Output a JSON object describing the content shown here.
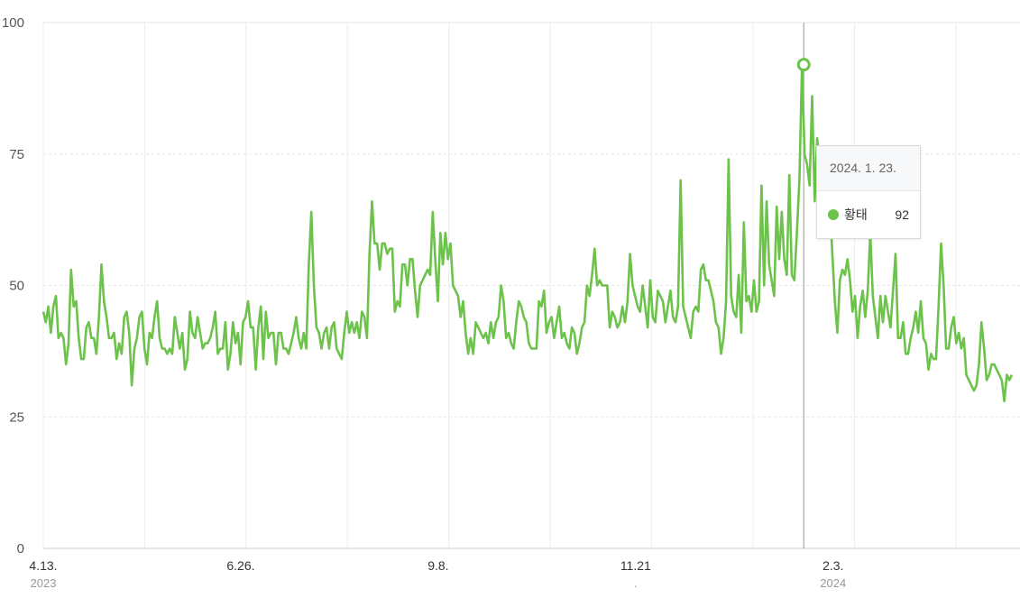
{
  "chart_data": {
    "type": "line",
    "title": "",
    "xlabel": "",
    "ylabel": "",
    "ylim": [
      0,
      100
    ],
    "yticks": [
      "0",
      "25",
      "50",
      "75",
      "100"
    ],
    "grid": true,
    "legend": "none",
    "line_color": "#6cc24a",
    "x_start": "2023-04-13",
    "x_end": "2024-04-10",
    "x_tick_labels": [
      {
        "label": "4.13.",
        "year": "2023",
        "date": "2023-04-13"
      },
      {
        "label": "6.26.",
        "year": "",
        "date": "2023-06-26"
      },
      {
        "label": "9.8.",
        "year": "",
        "date": "2023-09-08"
      },
      {
        "label": "11.21",
        "year": ".",
        "date": "2023-11-21"
      },
      {
        "label": "2.3.",
        "year": "2024",
        "date": "2024-02-03"
      }
    ],
    "series": [
      {
        "name": "황태",
        "values": [
          45,
          43,
          46,
          41,
          46,
          48,
          40,
          41,
          40,
          35,
          39,
          53,
          46,
          47,
          40,
          36,
          36,
          42,
          43,
          40,
          40,
          37,
          44,
          54,
          47,
          44,
          40,
          40,
          41,
          36,
          39,
          37,
          44,
          45,
          41,
          31,
          38,
          40,
          44,
          45,
          38,
          35,
          41,
          40,
          44,
          47,
          40,
          38,
          38,
          37,
          38,
          37,
          44,
          41,
          38,
          41,
          34,
          36,
          45,
          41,
          40,
          44,
          41,
          38,
          39,
          39,
          40,
          42,
          45,
          37,
          38,
          38,
          43,
          34,
          37,
          43,
          39,
          41,
          35,
          43,
          44,
          47,
          42,
          42,
          34,
          42,
          46,
          36,
          45,
          40,
          41,
          41,
          35,
          41,
          41,
          38,
          38,
          37,
          39,
          41,
          44,
          40,
          38,
          41,
          38,
          54,
          64,
          50,
          42,
          41,
          38,
          41,
          42,
          38,
          42,
          43,
          38,
          37,
          36,
          41,
          45,
          41,
          43,
          41,
          43,
          40,
          45,
          44,
          40,
          56,
          66,
          58,
          58,
          53,
          58,
          58,
          56,
          57,
          57,
          45,
          47,
          46,
          54,
          54,
          50,
          55,
          55,
          49,
          44,
          50,
          51,
          52,
          53,
          52,
          64,
          55,
          47,
          60,
          54,
          60,
          55,
          58,
          50,
          49,
          48,
          44,
          47,
          41,
          37,
          40,
          37,
          43,
          42,
          41,
          40,
          41,
          39,
          43,
          40,
          43,
          44,
          50,
          47,
          40,
          41,
          39,
          38,
          43,
          47,
          46,
          44,
          43,
          39,
          38,
          38,
          38,
          47,
          46,
          49,
          41,
          43,
          44,
          40,
          43,
          46,
          40,
          41,
          39,
          38,
          42,
          41,
          37,
          39,
          42,
          43,
          50,
          48,
          52,
          57,
          50,
          51,
          50,
          50,
          50,
          42,
          45,
          44,
          42,
          43,
          46,
          43,
          47,
          56,
          50,
          48,
          46,
          45,
          50,
          46,
          42,
          51,
          44,
          43,
          49,
          48,
          47,
          43,
          46,
          49,
          44,
          43,
          46,
          70,
          46,
          44,
          42,
          40,
          45,
          46,
          45,
          53,
          54,
          51,
          51,
          49,
          47,
          43,
          42,
          37,
          40,
          47,
          74,
          48,
          45,
          44,
          52,
          41,
          62,
          47,
          48,
          45,
          51,
          45,
          47,
          69,
          50,
          66,
          54,
          51,
          48,
          65,
          55,
          64,
          55,
          52,
          71,
          52,
          51,
          60,
          70,
          92,
          75,
          73,
          69,
          86,
          66,
          78,
          72,
          76,
          72,
          59,
          66,
          56,
          47,
          41,
          51,
          53,
          52,
          55,
          51,
          45,
          48,
          40,
          46,
          49,
          44,
          49,
          60,
          48,
          44,
          40,
          48,
          43,
          48,
          45,
          42,
          49,
          56,
          40,
          40,
          43,
          37,
          37,
          40,
          42,
          45,
          41,
          47,
          40,
          39,
          34,
          37,
          36,
          36,
          46,
          58,
          50,
          38,
          38,
          42,
          44,
          39,
          41,
          38,
          40,
          33,
          32,
          31,
          30,
          31,
          35,
          43,
          38,
          32,
          33,
          35,
          35,
          34,
          33,
          32,
          28,
          33,
          32,
          33
        ]
      }
    ],
    "tooltip": {
      "date_label": "2024. 1. 23.",
      "series_name": "황태",
      "value": "92",
      "date": "2024-01-23"
    }
  }
}
